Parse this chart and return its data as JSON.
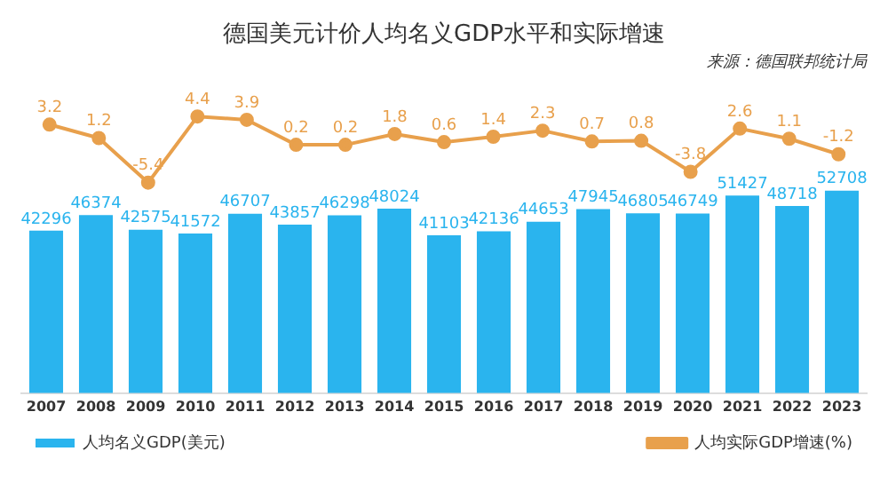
{
  "chart_data": [
    {
      "type": "line",
      "title": "德国美元计价人均名义GDP水平和实际增速",
      "annotations": [
        "来源：德国联邦统计局"
      ],
      "categories": [
        "2007",
        "2008",
        "2009",
        "2010",
        "2011",
        "2012",
        "2013",
        "2014",
        "2015",
        "2016",
        "2017",
        "2018",
        "2019",
        "2020",
        "2021",
        "2022",
        "2023"
      ],
      "series": [
        {
          "name": "人均实际GDP增速(%)",
          "color": "#e8a04c",
          "values": [
            3.2,
            1.2,
            -5.4,
            4.4,
            3.9,
            0.2,
            0.2,
            1.8,
            0.6,
            1.4,
            2.3,
            0.7,
            0.8,
            -3.8,
            2.6,
            1.1,
            -1.2
          ]
        }
      ],
      "marker": "circle",
      "data_labels": true,
      "legend": "bottom right",
      "tick_labels": false
    },
    {
      "type": "bar",
      "categories": [
        "2007",
        "2008",
        "2009",
        "2010",
        "2011",
        "2012",
        "2013",
        "2014",
        "2015",
        "2016",
        "2017",
        "2018",
        "2019",
        "2020",
        "2021",
        "2022",
        "2023"
      ],
      "series": [
        {
          "name": "人均名义GDP(美元)",
          "color": "#2ab4ee",
          "values": [
            42296,
            46374,
            42575,
            41572,
            46707,
            43857,
            46298,
            48024,
            41103,
            42136,
            44653,
            47945,
            46805,
            46749,
            51427,
            48718,
            52708
          ]
        }
      ],
      "data_labels": true,
      "legend": "bottom left",
      "tick_labels": "x"
    }
  ]
}
